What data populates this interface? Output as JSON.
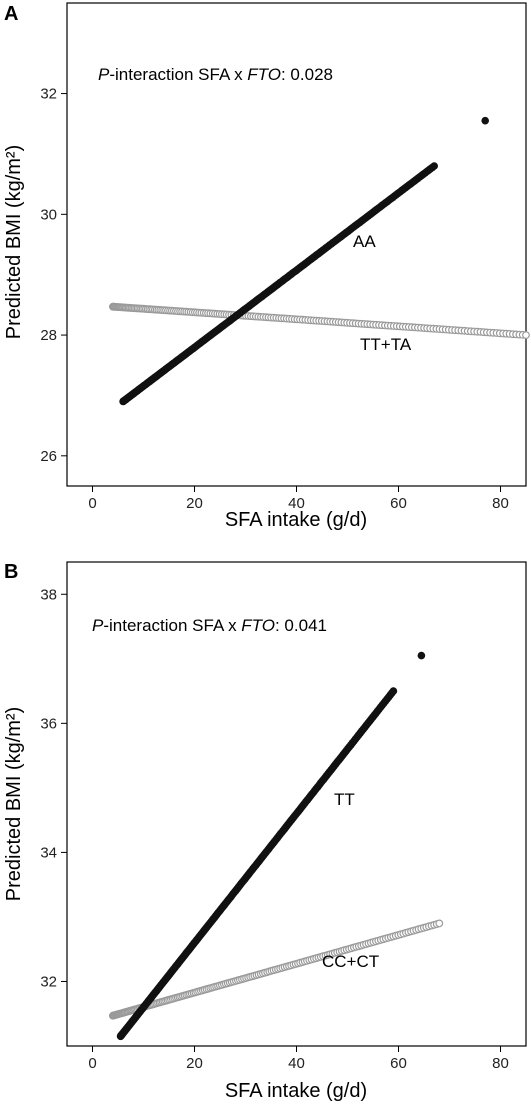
{
  "chart_data": [
    {
      "panel": "A",
      "type": "scatter",
      "xlabel": "SFA intake (g/d)",
      "ylabel": "Predicted BMI (kg/m²)",
      "xlim": [
        -5,
        85
      ],
      "ylim": [
        25.5,
        33.5
      ],
      "xticks": [
        0,
        20,
        40,
        60,
        80
      ],
      "yticks": [
        26,
        28,
        30,
        32
      ],
      "grid": false,
      "annotation": {
        "italic_prefix": "P",
        "text_before_gene": "-interaction SFA x ",
        "gene": "FTO",
        "text_after_gene": ": 0.028"
      },
      "series": [
        {
          "name": "AA",
          "color": "#111111",
          "marker": "filled-circle",
          "x_range": [
            6,
            67
          ],
          "y_range": [
            26.9,
            30.8
          ],
          "outliers": [
            {
              "x": 77,
              "y": 31.55
            }
          ]
        },
        {
          "name": "TT+TA",
          "color": "#9a9a9a",
          "marker": "open-circle",
          "x_range": [
            4,
            85
          ],
          "y_range": [
            28.47,
            28.0
          ]
        }
      ]
    },
    {
      "panel": "B",
      "type": "scatter",
      "xlabel": "SFA intake (g/d)",
      "ylabel": "Predicted BMI (kg/m²)",
      "xlim": [
        -5,
        85
      ],
      "ylim": [
        31,
        38.5
      ],
      "xticks": [
        0,
        20,
        40,
        60,
        80
      ],
      "yticks": [
        32,
        34,
        36,
        38
      ],
      "grid": false,
      "annotation": {
        "italic_prefix": "P",
        "text_before_gene": "-interaction SFA x ",
        "gene": "FTO",
        "text_after_gene": ": 0.041"
      },
      "series": [
        {
          "name": "TT",
          "color": "#111111",
          "marker": "filled-circle",
          "x_range": [
            5.5,
            59
          ],
          "y_range": [
            31.15,
            36.5
          ],
          "outliers": [
            {
              "x": 64.5,
              "y": 37.05
            }
          ]
        },
        {
          "name": "CC+CT",
          "color": "#9a9a9a",
          "marker": "open-circle",
          "x_range": [
            4,
            68
          ],
          "y_range": [
            31.47,
            32.9
          ]
        }
      ]
    }
  ]
}
